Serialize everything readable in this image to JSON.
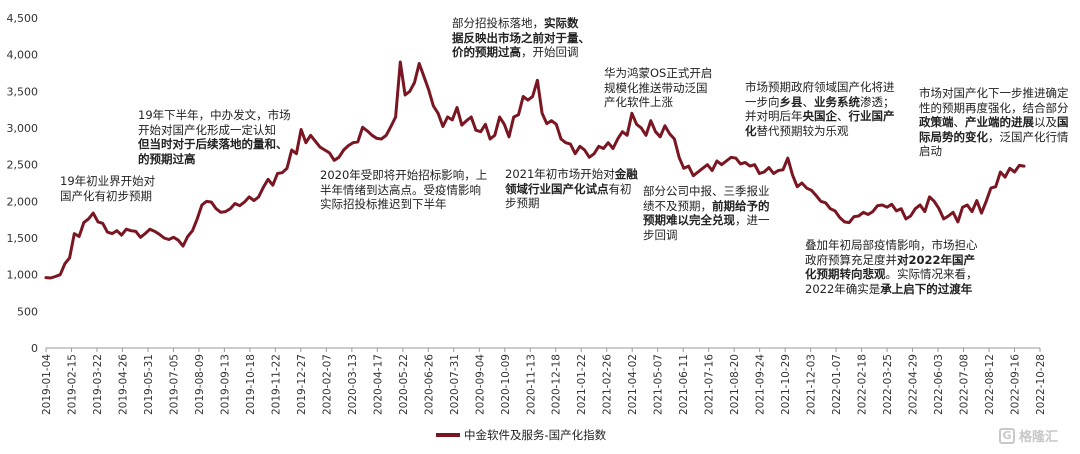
{
  "chart_data": {
    "type": "line",
    "title": "",
    "xlabel": "",
    "ylabel": "",
    "ylim": [
      0,
      4500
    ],
    "y_ticks": [
      "0",
      "500",
      "1,000",
      "1,500",
      "2,000",
      "2,500",
      "3,000",
      "3,500",
      "4,000",
      "4,500"
    ],
    "x_tick_labels": [
      "2019-01-04",
      "2019-02-15",
      "2019-03-22",
      "2019-04-26",
      "2019-05-31",
      "2019-07-05",
      "2019-08-09",
      "2019-09-13",
      "2019-10-18",
      "2019-11-22",
      "2019-12-27",
      "2020-02-07",
      "2020-03-13",
      "2020-04-17",
      "2020-05-22",
      "2020-06-26",
      "2020-07-31",
      "2020-09-04",
      "2020-10-09",
      "2020-11-13",
      "2020-12-18",
      "2021-01-22",
      "2021-02-26",
      "2021-04-02",
      "2021-05-07",
      "2021-06-11",
      "2021-07-16",
      "2021-08-20",
      "2021-09-24",
      "2021-10-29",
      "2021-12-03",
      "2022-01-07",
      "2022-02-18",
      "2022-03-25",
      "2022-04-29",
      "2022-06-03",
      "2022-07-08",
      "2022-08-12",
      "2022-09-16",
      "2022-10-28"
    ],
    "legend": "bottom-center",
    "grid": false,
    "series": [
      {
        "name": "中金软件及服务-国产化指数",
        "color": "#7a1522",
        "values": [
          960,
          955,
          975,
          1000,
          1150,
          1230,
          1560,
          1520,
          1710,
          1760,
          1840,
          1720,
          1700,
          1580,
          1560,
          1600,
          1540,
          1620,
          1600,
          1590,
          1510,
          1560,
          1620,
          1590,
          1550,
          1500,
          1480,
          1510,
          1470,
          1390,
          1520,
          1600,
          1760,
          1950,
          2000,
          1990,
          1900,
          1850,
          1860,
          1900,
          1970,
          1940,
          1990,
          2060,
          2010,
          2060,
          2190,
          2300,
          2220,
          2380,
          2390,
          2450,
          2700,
          2650,
          2980,
          2800,
          2900,
          2820,
          2740,
          2700,
          2660,
          2560,
          2600,
          2700,
          2760,
          2800,
          2810,
          3010,
          2960,
          2900,
          2860,
          2850,
          2900,
          3020,
          3150,
          3900,
          3450,
          3500,
          3620,
          3880,
          3700,
          3520,
          3300,
          3200,
          3020,
          3150,
          3110,
          3280,
          3040,
          3100,
          3150,
          2970,
          2950,
          3050,
          2850,
          2900,
          3150,
          3050,
          2880,
          3150,
          3180,
          3430,
          3380,
          3430,
          3650,
          3200,
          3060,
          3100,
          3050,
          2850,
          2800,
          2780,
          2650,
          2750,
          2700,
          2600,
          2650,
          2750,
          2720,
          2800,
          2720,
          2850,
          2950,
          2900,
          3200,
          3050,
          3000,
          2900,
          3100,
          2950,
          2880,
          3030,
          2920,
          2850,
          2600,
          2450,
          2480,
          2350,
          2400,
          2450,
          2500,
          2420,
          2550,
          2500,
          2550,
          2600,
          2590,
          2510,
          2530,
          2480,
          2500,
          2380,
          2400,
          2460,
          2380,
          2420,
          2430,
          2590,
          2360,
          2200,
          2250,
          2180,
          2150,
          2080,
          2000,
          1980,
          1900,
          1870,
          1780,
          1720,
          1710,
          1790,
          1800,
          1850,
          1820,
          1860,
          1940,
          1950,
          1920,
          1960,
          1870,
          1900,
          1760,
          1800,
          1900,
          1950,
          1860,
          2060,
          2000,
          1900,
          1760,
          1800,
          1850,
          1720,
          1920,
          1950,
          1860,
          2010,
          1840,
          2000,
          2180,
          2200,
          2400,
          2330,
          2450,
          2400,
          2490,
          2480
        ]
      }
    ]
  },
  "annotations": {
    "a1": {
      "lines": [
        [
          {
            "t": "19年初业界开始对",
            "b": false
          }
        ],
        [
          {
            "t": "国产化有初步预期",
            "b": false
          }
        ]
      ]
    },
    "a2": {
      "lines": [
        [
          {
            "t": "19年下半年，中办发文，市场",
            "b": false
          }
        ],
        [
          {
            "t": "开始对国产化形成一定认知",
            "b": false
          }
        ],
        [
          {
            "t": "但当时对于后续落地的量和、",
            "b": true
          }
        ],
        [
          {
            "t": "的预期过高",
            "b": true
          }
        ]
      ]
    },
    "a3": {
      "lines": [
        [
          {
            "t": "2020年受即将开始招标影响，上",
            "b": false
          }
        ],
        [
          {
            "t": "半年情绪到达高点。受疫情影响",
            "b": false
          }
        ],
        [
          {
            "t": "实际招投标推迟到下半年",
            "b": false
          }
        ]
      ]
    },
    "a4": {
      "lines": [
        [
          {
            "t": "部分招投标落地，",
            "b": false
          },
          {
            "t": "实际数",
            "b": true
          }
        ],
        [
          {
            "t": "据反映出市场之前对于量、",
            "b": true
          }
        ],
        [
          {
            "t": "价的预期过高",
            "b": true
          },
          {
            "t": "，开始回调",
            "b": false
          }
        ]
      ]
    },
    "a5": {
      "lines": [
        [
          {
            "t": "2021年初市场开始对",
            "b": false
          },
          {
            "t": "金融",
            "b": true
          }
        ],
        [
          {
            "t": "领域行业国产化试点",
            "b": true
          },
          {
            "t": "有初",
            "b": false
          }
        ],
        [
          {
            "t": "步预期",
            "b": false
          }
        ]
      ]
    },
    "a6": {
      "lines": [
        [
          {
            "t": "华为鸿蒙OS正式开启",
            "b": false
          }
        ],
        [
          {
            "t": "规模化推送带动泛国",
            "b": false
          }
        ],
        [
          {
            "t": "产化软件上涨",
            "b": false
          }
        ]
      ]
    },
    "a7": {
      "lines": [
        [
          {
            "t": "部分公司中报、三季报业",
            "b": false
          }
        ],
        [
          {
            "t": "绩不及预期，",
            "b": false
          },
          {
            "t": "前期给予的",
            "b": true
          }
        ],
        [
          {
            "t": "预期难以完全兑现",
            "b": true
          },
          {
            "t": "，进一",
            "b": false
          }
        ],
        [
          {
            "t": "步回调",
            "b": false
          }
        ]
      ]
    },
    "a8": {
      "lines": [
        [
          {
            "t": "市场预期政府领域国产化将进",
            "b": false
          }
        ],
        [
          {
            "t": "一步向",
            "b": false
          },
          {
            "t": "乡县",
            "b": true
          },
          {
            "t": "、",
            "b": false
          },
          {
            "t": "业务系统",
            "b": true
          },
          {
            "t": "渗透；",
            "b": false
          }
        ],
        [
          {
            "t": "并对明后年",
            "b": false
          },
          {
            "t": "央国企",
            "b": true
          },
          {
            "t": "、",
            "b": false
          },
          {
            "t": "行业国产",
            "b": true
          }
        ],
        [
          {
            "t": "化",
            "b": true
          },
          {
            "t": "替代预期较为乐观",
            "b": false
          }
        ]
      ]
    },
    "a9": {
      "lines": [
        [
          {
            "t": "叠加年初局部疫情影响，市场担心",
            "b": false
          }
        ],
        [
          {
            "t": "政府预算充足度并",
            "b": false
          },
          {
            "t": "对2022年国产",
            "b": true
          }
        ],
        [
          {
            "t": "化预期转向悲观",
            "b": true
          },
          {
            "t": "。实际情况来看，",
            "b": false
          }
        ],
        [
          {
            "t": "2022年确实是",
            "b": false
          },
          {
            "t": "承上启下的过渡年",
            "b": true
          }
        ]
      ]
    },
    "a10": {
      "lines": [
        [
          {
            "t": "市场对国产化下一步推进确定",
            "b": false
          }
        ],
        [
          {
            "t": "性的预期再度强化，结合部分",
            "b": false
          }
        ],
        [
          {
            "t": "政策端",
            "b": true
          },
          {
            "t": "、",
            "b": false
          },
          {
            "t": "产业端的进展",
            "b": true
          },
          {
            "t": "以及",
            "b": false
          },
          {
            "t": "国",
            "b": true
          }
        ],
        [
          {
            "t": "际局势的变化",
            "b": true
          },
          {
            "t": "，泛国产化行情",
            "b": false
          }
        ],
        [
          {
            "t": "启动",
            "b": false
          }
        ]
      ]
    }
  },
  "legend": {
    "label": "中金软件及服务-国产化指数"
  },
  "watermark": {
    "logo_char": "G",
    "text": "格隆汇"
  }
}
